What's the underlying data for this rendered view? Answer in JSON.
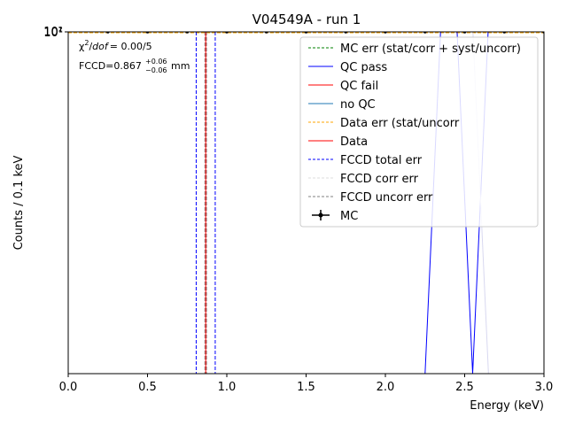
{
  "chart_data": {
    "type": "line",
    "title": "V04549A - run 1",
    "xlabel": "Energy (keV)",
    "ylabel": "Counts / 0.1 keV",
    "xlim": [
      0.0,
      3.0
    ],
    "ylim": [
      0.0,
      1.0
    ],
    "x_ticks": [
      "0.0",
      "0.5",
      "1.0",
      "1.5",
      "2.0",
      "2.5",
      "3.0"
    ],
    "y_ticks_overlapping": [
      "10¹",
      "10²"
    ],
    "grid": false,
    "legend_position": "upper right",
    "annotations": {
      "chi2_prefix": "χ",
      "chi2_sup": "2",
      "chi2_mid": "/",
      "chi2_dof": "dof",
      "chi2_value": "= 0.00/5",
      "fccd_prefix": "FCCD=0.867",
      "fccd_up": "+0.06",
      "fccd_down": "−0.06",
      "fccd_unit": "mm"
    },
    "legend": [
      {
        "label": "MC err (stat/corr + syst/uncorr)",
        "color": "#008000",
        "style": "dashed"
      },
      {
        "label": "QC pass",
        "color": "#0000ff",
        "style": "solid"
      },
      {
        "label": "QC fail",
        "color": "#ff0000",
        "style": "solid"
      },
      {
        "label": "no QC",
        "color": "#1f77b4",
        "style": "solid"
      },
      {
        "label": "Data err (stat/uncorr",
        "color": "#ffa500",
        "style": "dashed"
      },
      {
        "label": "Data",
        "color": "#ff0000",
        "style": "solid"
      },
      {
        "label": "FCCD total err",
        "color": "#0000ff",
        "style": "dashed"
      },
      {
        "label": "FCCD corr err",
        "color": "#dddddd",
        "style": "dashed"
      },
      {
        "label": "FCCD uncorr err",
        "color": "#808080",
        "style": "dashed"
      },
      {
        "label": "MC",
        "color": "#000000",
        "style": "errorbar"
      }
    ],
    "series": [
      {
        "name": "QC pass",
        "color": "#0000ff",
        "x": [
          0.05,
          2.25,
          2.35,
          2.45,
          2.55,
          2.65
        ],
        "y": [
          0.0,
          0.0,
          1.02,
          1.02,
          0.0,
          1.02
        ]
      }
    ],
    "mc_points_x": [
      0.25,
      0.5,
      0.75,
      1.0,
      1.25,
      1.5,
      1.75,
      2.0,
      2.25,
      2.5,
      2.75,
      3.0
    ],
    "mc_points_y": 1.0,
    "mc_errband_y": 1.0,
    "vertical_lines": [
      {
        "name": "FCCD total err low",
        "x": 0.807,
        "color": "#0000ff",
        "style": "dashed"
      },
      {
        "name": "FCCD total err high",
        "x": 0.927,
        "color": "#0000ff",
        "style": "dashed"
      },
      {
        "name": "FCCD uncorr err low",
        "x": 0.862,
        "color": "#808080",
        "style": "dashed"
      },
      {
        "name": "FCCD uncorr err high",
        "x": 0.872,
        "color": "#808080",
        "style": "dashed"
      },
      {
        "name": "FCCD central",
        "x": 0.867,
        "color": "#ff0000",
        "style": "solid"
      }
    ]
  }
}
